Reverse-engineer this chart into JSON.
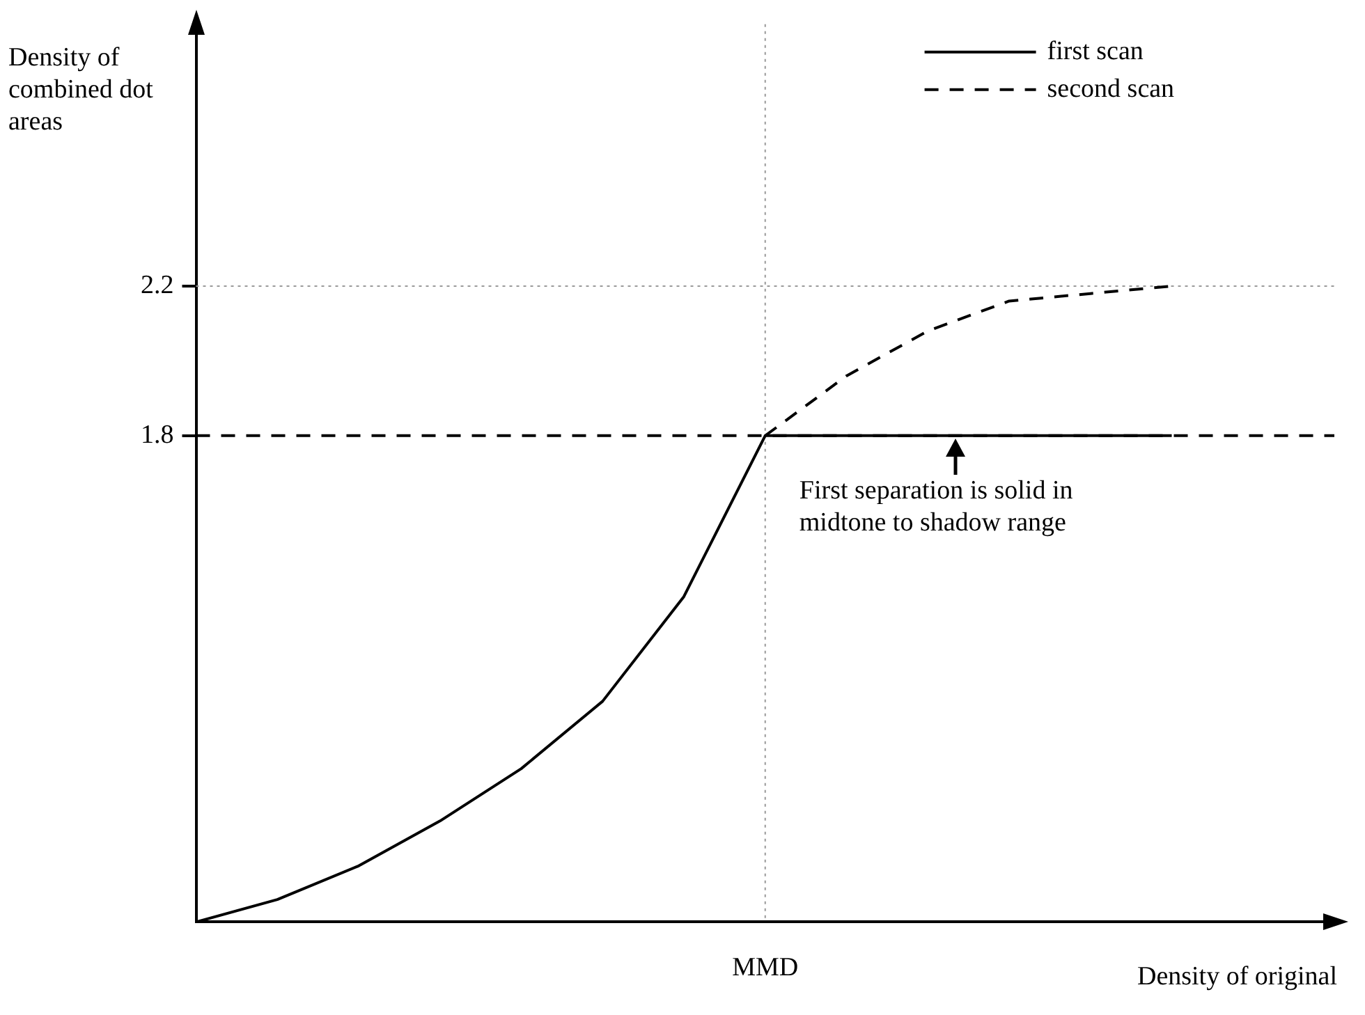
{
  "chart_data": {
    "type": "line",
    "xlabel": "Density of original",
    "ylabel": "Density of combined dot areas",
    "categories": [
      null,
      null,
      null,
      null,
      null,
      null,
      null,
      "MMD",
      null,
      null,
      null,
      null,
      null,
      null,
      null
    ],
    "series": [
      {
        "name": "first scan",
        "color": "#000000",
        "line_style": "solid",
        "values": [
          0.5,
          0.56,
          0.65,
          0.77,
          0.91,
          1.09,
          1.37,
          1.8,
          1.8,
          1.8,
          1.8,
          1.8,
          1.8,
          null,
          null
        ]
      },
      {
        "name": "second scan",
        "color": "#000000",
        "line_style": "dashed",
        "values": [
          null,
          null,
          null,
          null,
          null,
          null,
          null,
          1.8,
          1.96,
          2.08,
          2.16,
          2.18,
          2.2,
          null,
          null
        ]
      }
    ],
    "ylim": [
      0.5,
      2.9
    ],
    "yticks": [
      1.8,
      2.2
    ],
    "grid": false,
    "legend": "top right",
    "marker": "none",
    "ref_lines": [
      {
        "axis": "y",
        "value": 1.8,
        "color": "#000000",
        "line_style": "dashed"
      },
      {
        "axis": "y",
        "value": 2.2,
        "color": "#999999",
        "line_style": "dotted"
      },
      {
        "axis": "x",
        "value": "MMD",
        "color": "#999999",
        "line_style": "dotted"
      }
    ],
    "annotations": [
      {
        "text": "First separation is solid in midtone to shadow range",
        "y": 1.8
      }
    ]
  }
}
